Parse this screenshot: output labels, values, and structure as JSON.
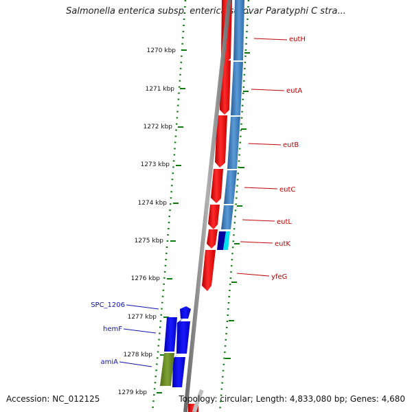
{
  "title": "Salmonella enterica subsp. enterica serovar Paratyphi C stra...",
  "footer": {
    "accession": "Accession: NC_012125",
    "summary": "Topology: circular; Length: 4,833,080 bp; Genes: 4,680"
  },
  "ticks": [
    "1270 kbp",
    "1271 kbp",
    "1272 kbp",
    "1273 kbp",
    "1274 kbp",
    "1275 kbp",
    "1276 kbp",
    "1277 kbp",
    "1278 kbp",
    "1279 kbp"
  ],
  "genes_right": [
    "eutH",
    "eutA",
    "eutB",
    "eutC",
    "eutL",
    "eutK",
    "yfeG"
  ],
  "genes_left": [
    "SPC_1206",
    "hemF",
    "amiA"
  ],
  "colors": {
    "forward_gene": "#1010e0",
    "reverse_gene": "#ee1111",
    "cds_blue": "#3f7fbf",
    "cds_green": "#6b8e23",
    "cds_cyan": "#00e0f0",
    "tick_green": "#0a7a0a",
    "label_red": "#c00000",
    "label_blue": "#1010b0"
  }
}
